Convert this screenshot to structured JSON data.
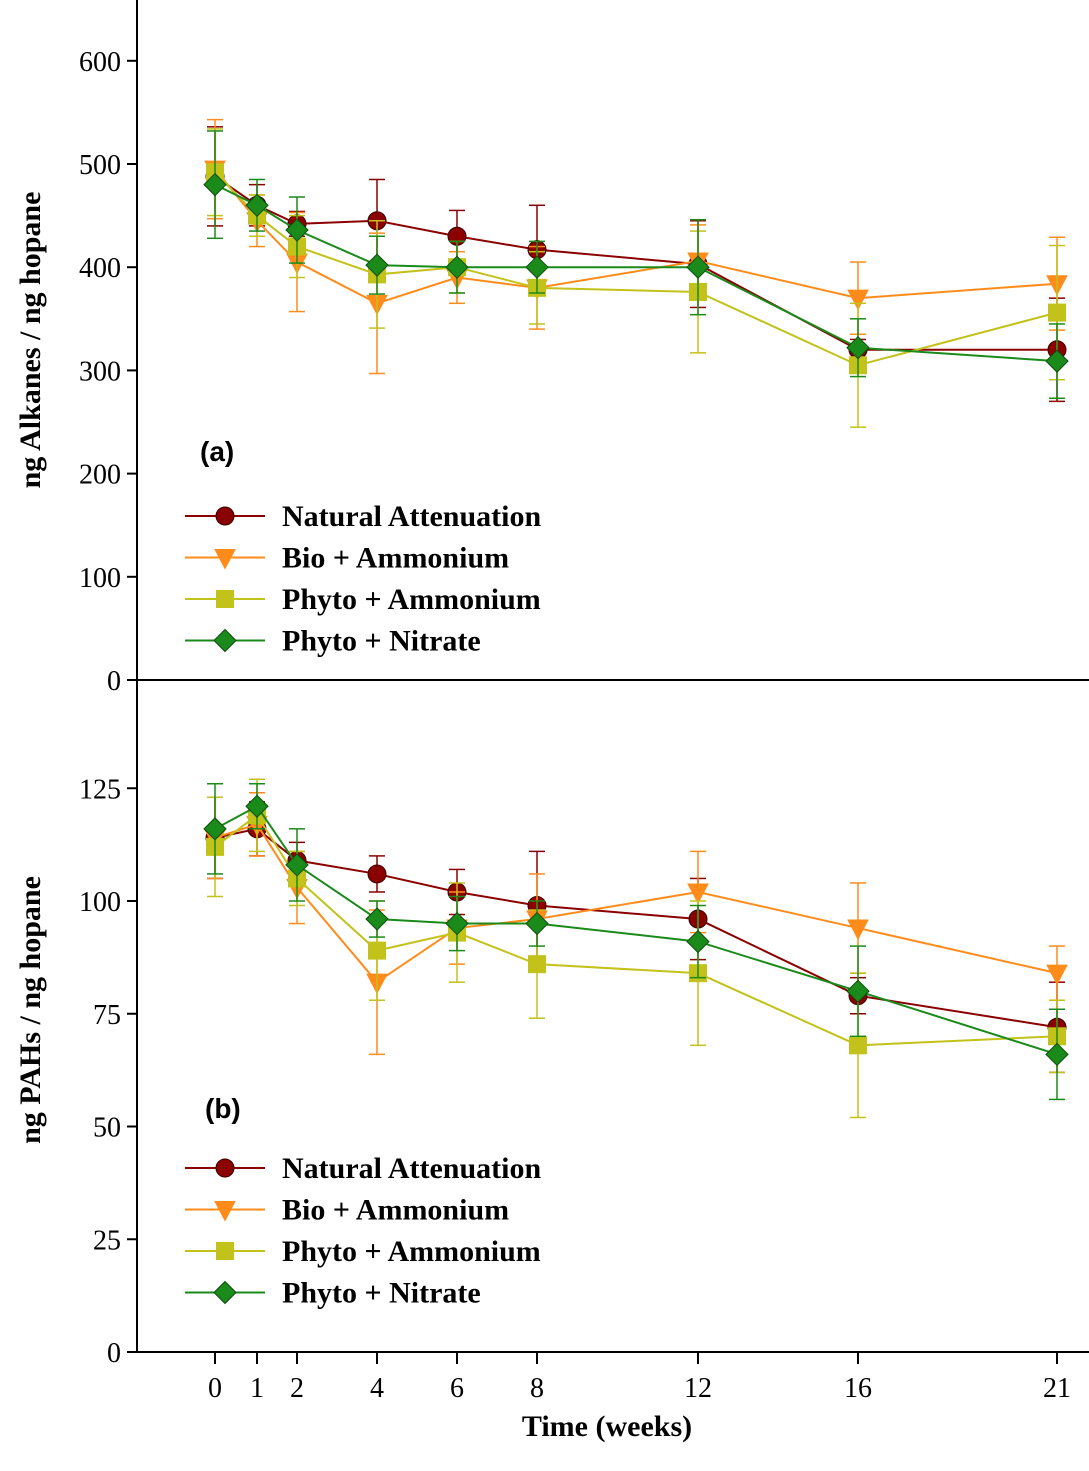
{
  "chart_data": [
    {
      "type": "line",
      "panel_label": "(a)",
      "ylabel": "ng Alkanes / ng hopane",
      "xlabel": "",
      "x": [
        0,
        1,
        2,
        4,
        6,
        8,
        12,
        16,
        21
      ],
      "ylim": [
        0,
        640
      ],
      "yticks": [
        0,
        100,
        200,
        300,
        400,
        500,
        600
      ],
      "legend_position": "bottom-left",
      "series": [
        {
          "name": "Natural Attenuation",
          "color": "#8b0000",
          "marker": "circle",
          "values": [
            488,
            460,
            442,
            445,
            430,
            417,
            403,
            320,
            320
          ],
          "errors": [
            48,
            20,
            12,
            40,
            25,
            43,
            42,
            10,
            50
          ]
        },
        {
          "name": "Bio + Ammonium",
          "color": "#ff8c1a",
          "marker": "triangle-down",
          "values": [
            495,
            445,
            405,
            365,
            390,
            380,
            406,
            370,
            384
          ],
          "errors": [
            48,
            25,
            48,
            68,
            25,
            40,
            35,
            35,
            45
          ]
        },
        {
          "name": "Phyto + Ammonium",
          "color": "#c2c21a",
          "marker": "square",
          "values": [
            492,
            450,
            420,
            393,
            400,
            380,
            376,
            305,
            356
          ],
          "errors": [
            42,
            20,
            30,
            52,
            25,
            35,
            59,
            60,
            65
          ]
        },
        {
          "name": "Phyto + Nitrate",
          "color": "#1a8a1a",
          "marker": "diamond",
          "values": [
            480,
            460,
            436,
            402,
            400,
            400,
            400,
            322,
            309
          ],
          "errors": [
            52,
            25,
            32,
            28,
            25,
            25,
            46,
            28,
            36
          ]
        }
      ]
    },
    {
      "type": "line",
      "panel_label": "(b)",
      "ylabel": "ng PAHs / ng hopane",
      "xlabel": "Time (weeks)",
      "x": [
        0,
        1,
        2,
        4,
        6,
        8,
        12,
        16,
        21
      ],
      "xticks": [
        "0",
        "1",
        "2",
        "4",
        "6",
        "8",
        "12",
        "16",
        "21"
      ],
      "ylim": [
        0,
        145
      ],
      "yticks": [
        0,
        25,
        50,
        75,
        100,
        125
      ],
      "legend_position": "bottom-left",
      "series": [
        {
          "name": "Natural Attenuation",
          "color": "#8b0000",
          "marker": "circle",
          "values": [
            114,
            116,
            109,
            106,
            102,
            99,
            96,
            79,
            72
          ],
          "errors": [
            9,
            6,
            4,
            4,
            5,
            12,
            9,
            4,
            10
          ]
        },
        {
          "name": "Bio + Ammonium",
          "color": "#ff8c1a",
          "marker": "triangle-down",
          "values": [
            114,
            117,
            103,
            82,
            94,
            96,
            102,
            94,
            84
          ],
          "errors": [
            9,
            7,
            8,
            16,
            8,
            10,
            9,
            10,
            6
          ]
        },
        {
          "name": "Phyto + Ammonium",
          "color": "#c2c21a",
          "marker": "square",
          "values": [
            112,
            119,
            105,
            89,
            93,
            86,
            84,
            68,
            70
          ],
          "errors": [
            11,
            8,
            6,
            11,
            11,
            12,
            16,
            16,
            8
          ]
        },
        {
          "name": "Phyto + Nitrate",
          "color": "#1a8a1a",
          "marker": "diamond",
          "values": [
            116,
            121,
            108,
            96,
            95,
            95,
            91,
            80,
            66
          ],
          "errors": [
            10,
            5,
            8,
            4,
            6,
            5,
            8,
            10,
            10
          ]
        }
      ]
    }
  ]
}
